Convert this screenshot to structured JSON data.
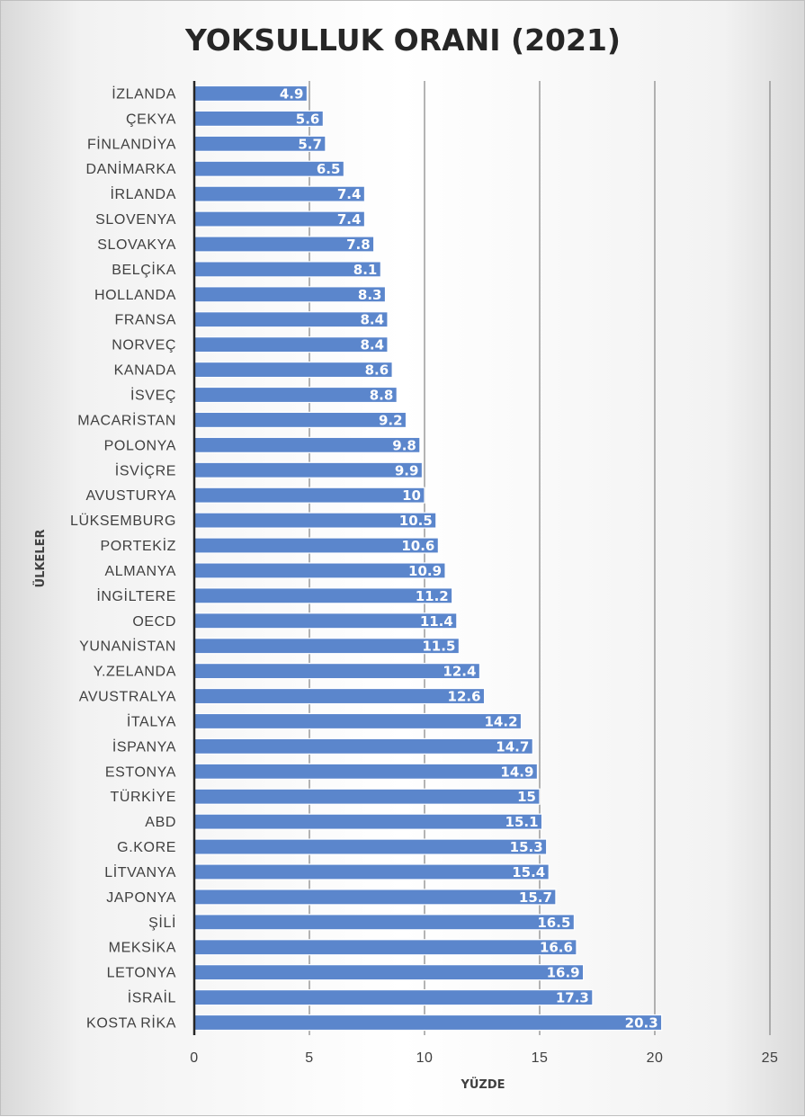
{
  "chart_data": {
    "type": "bar",
    "orientation": "horizontal",
    "title": "YOKSULLUK ORANI (2021)",
    "xlabel": "YÜZDE",
    "ylabel": "ÜLKELER",
    "xlim": [
      0,
      25
    ],
    "xticks": [
      "0",
      "5",
      "10",
      "15",
      "20",
      "25"
    ],
    "grid": true,
    "legend": "none",
    "bar_color": "#5b86cc",
    "categories": [
      "İZLANDA",
      "ÇEKYA",
      "FİNLANDİYA",
      "DANİMARKA",
      "İRLANDA",
      "SLOVENYA",
      "SLOVAKYA",
      "BELÇİKA",
      "HOLLANDA",
      "FRANSA",
      "NORVEÇ",
      "KANADA",
      "İSVEÇ",
      "MACARİSTAN",
      "POLONYA",
      "İSVİÇRE",
      "AVUSTURYA",
      "LÜKSEMBURG",
      "PORTEKİZ",
      "ALMANYA",
      "İNGİLTERE",
      "OECD",
      "YUNANİSTAN",
      "Y.ZELANDA",
      "AVUSTRALYA",
      "İTALYA",
      "İSPANYA",
      "ESTONYA",
      "TÜRKİYE",
      "ABD",
      "G.KORE",
      "LİTVANYA",
      "JAPONYA",
      "ŞİLİ",
      "MEKSİKA",
      "LETONYA",
      "İSRAİL",
      "KOSTA RİKA"
    ],
    "values": [
      4.9,
      5.6,
      5.7,
      6.5,
      7.4,
      7.4,
      7.8,
      8.1,
      8.3,
      8.4,
      8.4,
      8.6,
      8.8,
      9.2,
      9.8,
      9.9,
      10,
      10.5,
      10.6,
      10.9,
      11.2,
      11.4,
      11.5,
      12.4,
      12.6,
      14.2,
      14.7,
      14.9,
      15,
      15.1,
      15.3,
      15.4,
      15.7,
      16.5,
      16.6,
      16.9,
      17.3,
      20.3
    ]
  }
}
